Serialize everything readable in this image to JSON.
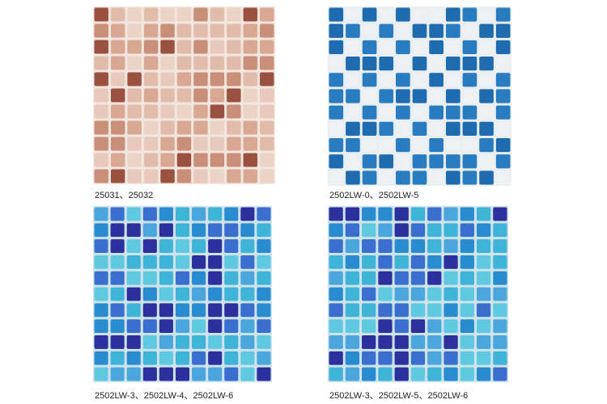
{
  "products": [
    {
      "caption": "25031、25032"
    },
    {
      "caption": "2502LW-0、2502LW-5"
    },
    {
      "caption": "2502LW-3、2502LW-4、2502LW-6"
    },
    {
      "caption": "2502LW-3、2502LW-5、2502LW-6"
    }
  ]
}
